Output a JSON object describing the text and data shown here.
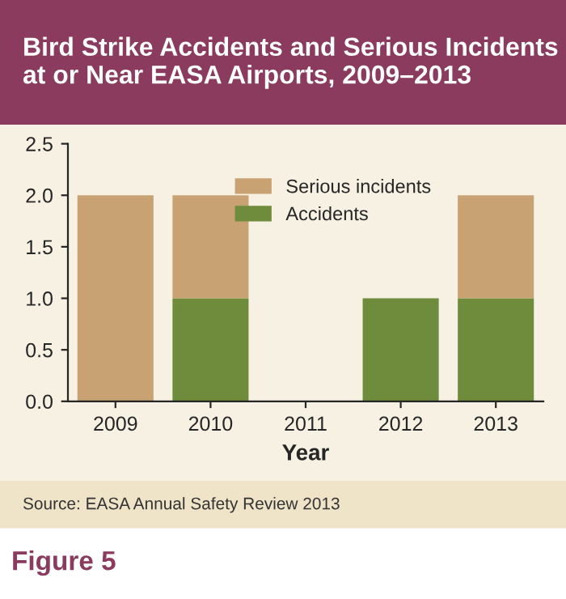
{
  "chart_data": {
    "type": "bar",
    "title": "Bird Strike Accidents and Serious Incidents at or Near EASA Airports, 2009–2013",
    "categories": [
      "2009",
      "2010",
      "2011",
      "2012",
      "2013"
    ],
    "series": [
      {
        "name": "Accidents",
        "color": "#6e8c3c",
        "values": [
          0,
          1,
          0,
          1,
          1
        ]
      },
      {
        "name": "Serious incidents",
        "color": "#c8a273",
        "values": [
          2,
          1,
          0,
          0,
          1
        ]
      }
    ],
    "stacked": true,
    "xlabel": "Year",
    "ylim": [
      0,
      2.5
    ],
    "yticks": [
      {
        "value": 0,
        "label": "0.0"
      },
      0.5,
      {
        "value": 1,
        "label": "1.0"
      },
      1.5,
      {
        "value": 2,
        "label": "2.0"
      },
      2.5
    ],
    "legend": "top right",
    "grid": false,
    "annotations": [
      "Source: EASA Annual Safety Review 2013",
      "Figure 5"
    ]
  }
}
